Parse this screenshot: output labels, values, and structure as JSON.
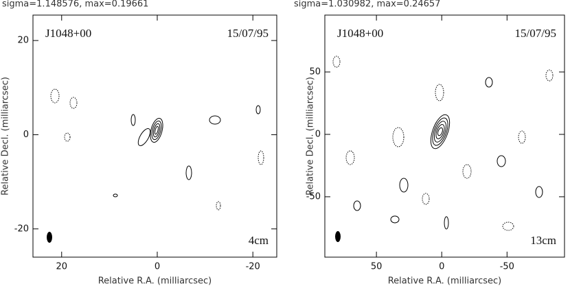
{
  "chart_data": [
    {
      "type": "contour",
      "title": "sigma=1.148576, max=0.19661",
      "source": "J1048+00",
      "date": "15/07/95",
      "band": "4cm",
      "x_label": "Relative R.A. (milliarcsec)",
      "y_label": "Relative Decl. (milliarcsec)",
      "xlim": [
        26,
        -25
      ],
      "ylim": [
        -26,
        25.4
      ],
      "xticks": [
        20,
        0,
        -20
      ],
      "yticks": [
        -20,
        0,
        20
      ]
    },
    {
      "type": "contour",
      "title": "sigma=1.030982, max=0.24657",
      "source": "J1048+00",
      "date": "15/07/95",
      "band": "13cm",
      "x_label": "Relative R.A. (milliarcsec)",
      "y_label": "Relative Decl. (milliarcsec)",
      "xlim": [
        89.5,
        -94
      ],
      "ylim": [
        -98.4,
        95.6
      ],
      "xticks": [
        50,
        0,
        -50
      ],
      "yticks": [
        -50,
        0,
        50
      ]
    }
  ]
}
